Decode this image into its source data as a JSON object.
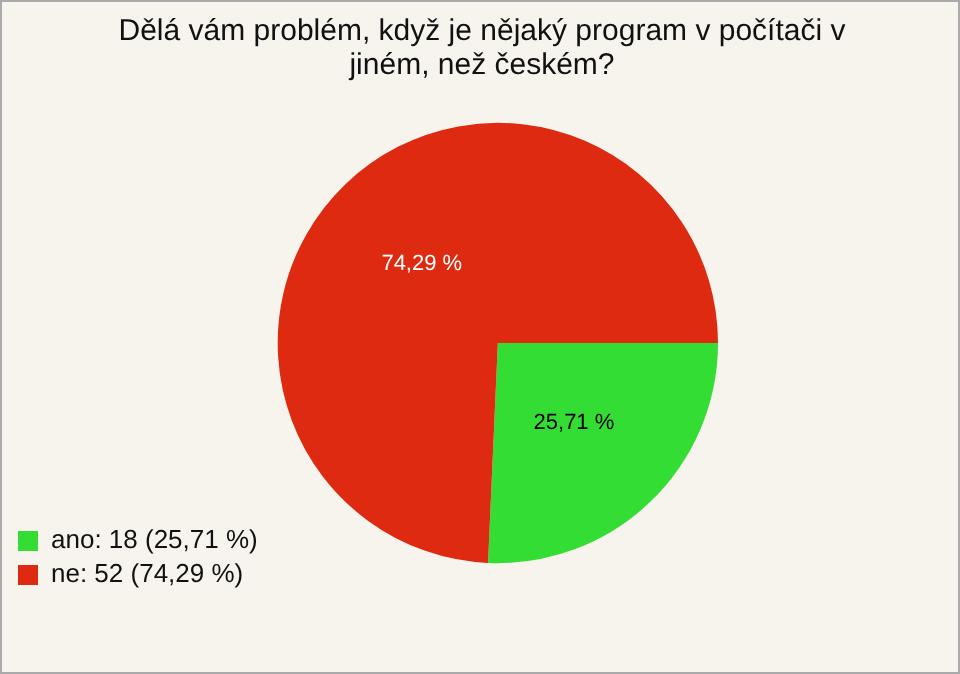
{
  "chart_data": {
    "type": "pie",
    "title": "Dělá vám problém, když je nějaký program v počítači v jiném, než českém?",
    "categories": [
      "ano: 18 (25,71 %)",
      "ne: 52 (74,29 %)"
    ],
    "values": [
      25.71,
      74.29
    ],
    "value_labels": [
      "25,71 %",
      "74,29 %"
    ],
    "colors": [
      "#33dd33",
      "#dd2a10"
    ],
    "legend": "bottom left"
  }
}
